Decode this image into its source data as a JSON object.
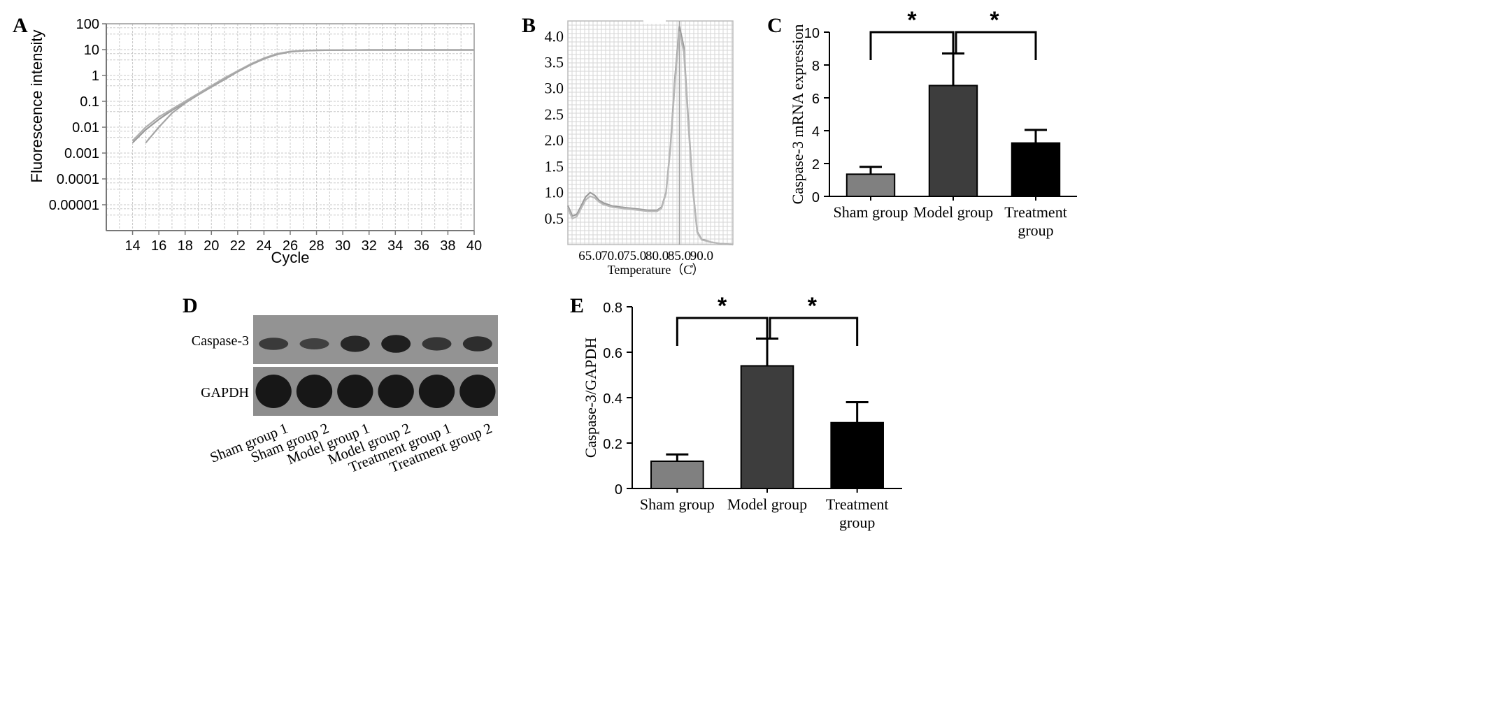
{
  "panels": [
    {
      "letter": "A",
      "type": "line",
      "xlabel": "Cycle",
      "ylabel": "Fluorescence intensity",
      "log_scale_y": true,
      "xlim": [
        12,
        40
      ],
      "ylim": [
        1e-06,
        100
      ],
      "xticks": [
        "14",
        "16",
        "18",
        "20",
        "22",
        "24",
        "26",
        "28",
        "30",
        "32",
        "34",
        "36",
        "38",
        "40"
      ],
      "yticks": [
        "100",
        "10",
        "1",
        "0.1",
        "0.01",
        "0.001",
        "0.0001",
        "0.00001"
      ],
      "grid": true,
      "series": [
        {
          "x": [
            14,
            15,
            16,
            17,
            18,
            19,
            20,
            21,
            22,
            23,
            24,
            25,
            26,
            27,
            28,
            30,
            32,
            40
          ],
          "y": [
            0.0025,
            0.008,
            0.02,
            0.045,
            0.09,
            0.18,
            0.36,
            0.7,
            1.4,
            2.6,
            4.4,
            6.6,
            8.3,
            9.0,
            9.4,
            9.6,
            9.7,
            9.7
          ]
        },
        {
          "x": [
            14,
            15,
            16,
            17,
            18,
            19,
            20,
            21,
            22,
            23,
            24,
            25,
            26,
            27,
            28,
            30,
            32,
            40
          ],
          "y": [
            0.003,
            0.01,
            0.025,
            0.05,
            0.1,
            0.2,
            0.4,
            0.8,
            1.5,
            2.8,
            4.7,
            6.9,
            8.5,
            9.1,
            9.4,
            9.6,
            9.7,
            9.7
          ]
        },
        {
          "x": [
            15,
            16,
            17,
            18,
            19,
            20,
            21,
            22,
            23,
            24,
            25,
            26,
            27,
            28,
            30,
            32,
            40
          ],
          "y": [
            0.0025,
            0.01,
            0.035,
            0.085,
            0.18,
            0.36,
            0.72,
            1.4,
            2.6,
            4.4,
            6.5,
            8.2,
            9.0,
            9.4,
            9.6,
            9.7,
            9.7
          ]
        }
      ]
    },
    {
      "letter": "B",
      "type": "line",
      "xlabel": "Temperature（C̊）",
      "ylim": [
        0,
        4.3
      ],
      "xlim": [
        60,
        97
      ],
      "xticks": [
        "65.0",
        "70.0",
        "75.0",
        "80.0",
        "85.0",
        "90.0"
      ],
      "yticks": [
        "4.0",
        "3.5",
        "3.0",
        "2.5",
        "2.0",
        "1.5",
        "1.0",
        "0.5"
      ],
      "grid": true,
      "series": [
        {
          "x": [
            60,
            61,
            62,
            63,
            64,
            65,
            66,
            67,
            68,
            70,
            72,
            74,
            76,
            78,
            80,
            81,
            82,
            83,
            84,
            85,
            86,
            87,
            88,
            89,
            90,
            91,
            92,
            94,
            97
          ],
          "y": [
            0.75,
            0.55,
            0.58,
            0.75,
            0.92,
            1.0,
            0.95,
            0.85,
            0.8,
            0.74,
            0.72,
            0.7,
            0.68,
            0.66,
            0.66,
            0.72,
            1.0,
            1.9,
            3.2,
            4.2,
            3.8,
            2.4,
            1.1,
            0.25,
            0.1,
            0.08,
            0.05,
            0.02,
            0.0
          ]
        },
        {
          "x": [
            60,
            61,
            62,
            63,
            64,
            65,
            66,
            67,
            68,
            70,
            72,
            74,
            76,
            78,
            80,
            81,
            82,
            83,
            84,
            85,
            86,
            87,
            88,
            89,
            90,
            91,
            92,
            94,
            97
          ],
          "y": [
            0.7,
            0.5,
            0.54,
            0.7,
            0.86,
            0.93,
            0.9,
            0.82,
            0.77,
            0.72,
            0.7,
            0.68,
            0.66,
            0.64,
            0.64,
            0.7,
            0.98,
            1.85,
            3.1,
            4.1,
            3.7,
            2.3,
            1.05,
            0.23,
            0.09,
            0.07,
            0.05,
            0.02,
            0.0
          ]
        }
      ]
    },
    {
      "letter": "C",
      "type": "bar",
      "ylabel": "Caspase-3 mRNA expression",
      "ylim": [
        0,
        10
      ],
      "yticks": [
        "0",
        "2",
        "4",
        "6",
        "8",
        "10"
      ],
      "categories": [
        [
          "Sham group"
        ],
        [
          "Model group"
        ],
        [
          "Treatment",
          "group"
        ]
      ],
      "values": [
        1.35,
        6.75,
        3.25
      ],
      "errors": [
        0.45,
        1.95,
        0.8
      ],
      "bar_colors": [
        "#808080",
        "#3d3d3d",
        "#000000"
      ],
      "significance": [
        {
          "from": 0,
          "to": 1,
          "label": "*"
        },
        {
          "from": 1,
          "to": 2,
          "label": "*"
        }
      ]
    },
    {
      "letter": "D",
      "type": "blot",
      "rows": [
        "Caspase-3",
        "GAPDH"
      ],
      "lanes": [
        "Sham group 1",
        "Sham group 2",
        "Model group 1",
        "Model group 2",
        "Treatment group 1",
        "Treatment group 2"
      ],
      "band_intensity": {
        "Caspase-3": [
          0.35,
          0.25,
          0.7,
          0.85,
          0.45,
          0.6
        ],
        "GAPDH": [
          1,
          1,
          1,
          1,
          1,
          1
        ]
      }
    },
    {
      "letter": "E",
      "type": "bar",
      "ylabel": "Caspase-3/GAPDH",
      "ylim": [
        0,
        0.8
      ],
      "yticks": [
        "0",
        "0.2",
        "0.4",
        "0.6",
        "0.8"
      ],
      "categories": [
        [
          "Sham group"
        ],
        [
          "Model group"
        ],
        [
          "Treatment",
          "group"
        ]
      ],
      "values": [
        0.12,
        0.54,
        0.29
      ],
      "errors": [
        0.03,
        0.12,
        0.09
      ],
      "bar_colors": [
        "#808080",
        "#3d3d3d",
        "#000000"
      ],
      "significance": [
        {
          "from": 0,
          "to": 1,
          "label": "*"
        },
        {
          "from": 1,
          "to": 2,
          "label": "*"
        }
      ]
    }
  ]
}
